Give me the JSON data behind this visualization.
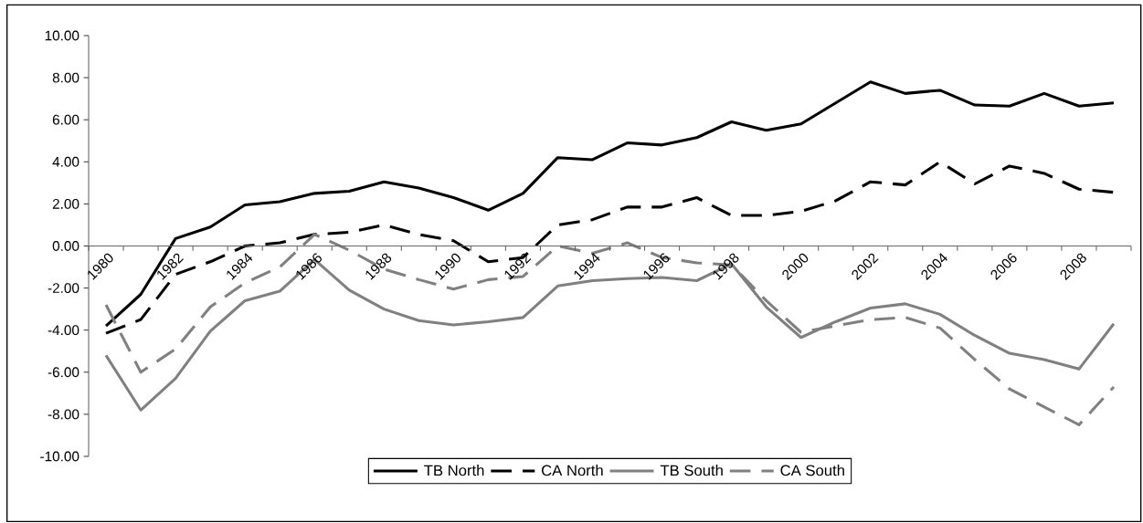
{
  "chart_data": {
    "type": "line",
    "categories": [
      "1980",
      null,
      "1982",
      null,
      "1984",
      null,
      "1986",
      null,
      "1988",
      null,
      "1990",
      null,
      "1992",
      null,
      "1994",
      null,
      "1996",
      null,
      "1998",
      null,
      "2000",
      null,
      "2002",
      null,
      "2004",
      null,
      "2006",
      null,
      "2008",
      null
    ],
    "series": [
      {
        "name": "TB North",
        "color": "#000000",
        "line_style": "solid",
        "values": [
          -3.8,
          -2.3,
          0.35,
          0.9,
          1.95,
          2.1,
          2.5,
          2.6,
          3.05,
          2.75,
          2.3,
          1.7,
          2.5,
          4.2,
          4.1,
          4.9,
          4.8,
          5.15,
          5.9,
          5.5,
          5.8,
          6.8,
          7.8,
          7.25,
          7.4,
          6.7,
          6.65,
          7.25,
          6.65,
          6.8
        ]
      },
      {
        "name": "CA North",
        "color": "#000000",
        "line_style": "dashed",
        "values": [
          -4.15,
          -3.5,
          -1.35,
          -0.75,
          0.0,
          0.15,
          0.55,
          0.65,
          1.0,
          0.55,
          0.25,
          -0.75,
          -0.55,
          1.0,
          1.25,
          1.85,
          1.85,
          2.3,
          1.45,
          1.45,
          1.65,
          2.15,
          3.05,
          2.9,
          4.0,
          2.95,
          3.8,
          3.45,
          2.7,
          2.55
        ]
      },
      {
        "name": "TB South",
        "color": "#808080",
        "line_style": "solid",
        "values": [
          -5.2,
          -7.8,
          -6.3,
          -4.05,
          -2.6,
          -2.15,
          -0.65,
          -2.1,
          -3.0,
          -3.55,
          -3.75,
          -3.6,
          -3.4,
          -1.9,
          -1.65,
          -1.55,
          -1.5,
          -1.65,
          -0.85,
          -2.9,
          -4.35,
          -3.6,
          -2.95,
          -2.75,
          -3.25,
          -4.25,
          -5.1,
          -5.4,
          -5.85,
          -3.7
        ]
      },
      {
        "name": "CA South",
        "color": "#808080",
        "line_style": "dashed",
        "values": [
          -2.8,
          -6.0,
          -4.9,
          -2.9,
          -1.75,
          -1.0,
          0.55,
          -0.2,
          -1.1,
          -1.6,
          -2.05,
          -1.6,
          -1.45,
          0.0,
          -0.35,
          0.15,
          -0.55,
          -0.8,
          -0.9,
          -2.6,
          -4.1,
          -3.8,
          -3.5,
          -3.4,
          -3.9,
          -5.4,
          -6.8,
          -7.65,
          -8.5,
          -6.7
        ]
      }
    ],
    "ylim": [
      -10,
      10
    ],
    "yticks": [
      {
        "value": -10,
        "label": "-10.00"
      },
      {
        "value": -8,
        "label": "-8.00"
      },
      {
        "value": -6,
        "label": "-6.00"
      },
      {
        "value": -4,
        "label": "-4.00"
      },
      {
        "value": -2,
        "label": "-2.00"
      },
      {
        "value": 0,
        "label": "0.00"
      },
      {
        "value": 2,
        "label": "2.00"
      },
      {
        "value": 4,
        "label": "4.00"
      },
      {
        "value": 6,
        "label": "6.00"
      },
      {
        "value": 8,
        "label": "8.00"
      },
      {
        "value": 10,
        "label": "10.00"
      }
    ],
    "legend": "bottom",
    "marker": "none"
  }
}
